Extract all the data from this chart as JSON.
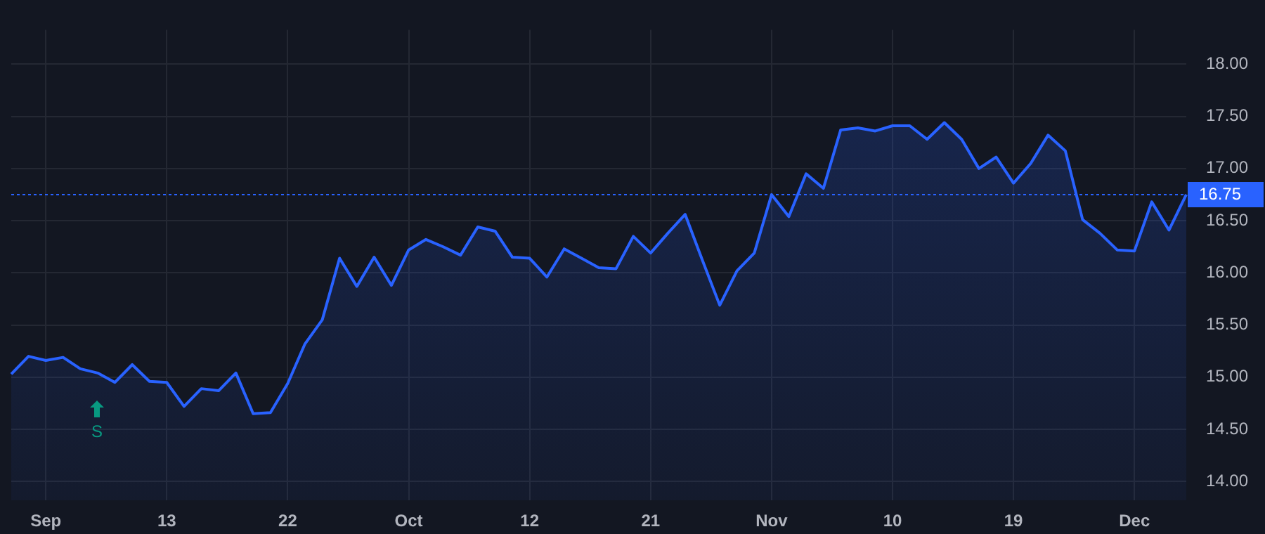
{
  "chart_data": {
    "type": "area",
    "categories": [
      null,
      null,
      "Sep",
      null,
      null,
      null,
      null,
      null,
      null,
      "13",
      null,
      null,
      null,
      null,
      null,
      null,
      "22",
      null,
      null,
      null,
      null,
      null,
      null,
      "Oct",
      null,
      null,
      null,
      null,
      null,
      null,
      "12",
      null,
      null,
      null,
      null,
      null,
      null,
      "21",
      null,
      null,
      null,
      null,
      null,
      null,
      "Nov",
      null,
      null,
      null,
      null,
      null,
      null,
      "10",
      null,
      null,
      null,
      null,
      null,
      null,
      "19",
      null,
      null,
      null,
      null,
      null,
      null,
      "Dec",
      null,
      null,
      null
    ],
    "series": [
      {
        "color": "#2962ff",
        "values": [
          15.03,
          15.2,
          15.16,
          15.19,
          15.08,
          15.04,
          14.95,
          15.12,
          14.96,
          14.95,
          14.72,
          14.89,
          14.87,
          15.04,
          14.65,
          14.66,
          14.94,
          15.32,
          15.55,
          16.14,
          15.87,
          16.15,
          15.88,
          16.22,
          16.32,
          16.25,
          16.17,
          16.44,
          16.4,
          16.15,
          16.14,
          15.96,
          16.23,
          16.14,
          16.05,
          16.04,
          16.35,
          16.19,
          16.38,
          16.56,
          16.12,
          15.69,
          16.02,
          16.19,
          16.75,
          16.54,
          16.95,
          16.81,
          17.37,
          17.39,
          17.36,
          17.41,
          17.41,
          17.28,
          17.44,
          17.28,
          17.0,
          17.11,
          16.86,
          17.05,
          17.32,
          17.17,
          16.51,
          16.38,
          16.22,
          16.21,
          16.68,
          16.41,
          16.75
        ]
      }
    ],
    "ylim": [
      13.82,
      18.33
    ],
    "yticks": [
      {
        "value": 14,
        "label": "14.00"
      },
      {
        "value": 14.5,
        "label": "14.50"
      },
      {
        "value": 15,
        "label": "15.00"
      },
      {
        "value": 15.5,
        "label": "15.50"
      },
      {
        "value": 16,
        "label": "16.00"
      },
      {
        "value": 16.5,
        "label": "16.50"
      },
      {
        "value": 17,
        "label": "17.00"
      },
      {
        "value": 17.5,
        "label": "17.50"
      },
      {
        "value": 18,
        "label": "18.00"
      }
    ],
    "ref_lines": [
      {
        "axis": "y",
        "value": 16.75,
        "label": "16.75",
        "color": "#2962ff",
        "line_style": "dotted"
      }
    ],
    "annotations": [
      "S"
    ],
    "grid": true,
    "legend": false,
    "marker": "none",
    "line_style": "solid"
  }
}
